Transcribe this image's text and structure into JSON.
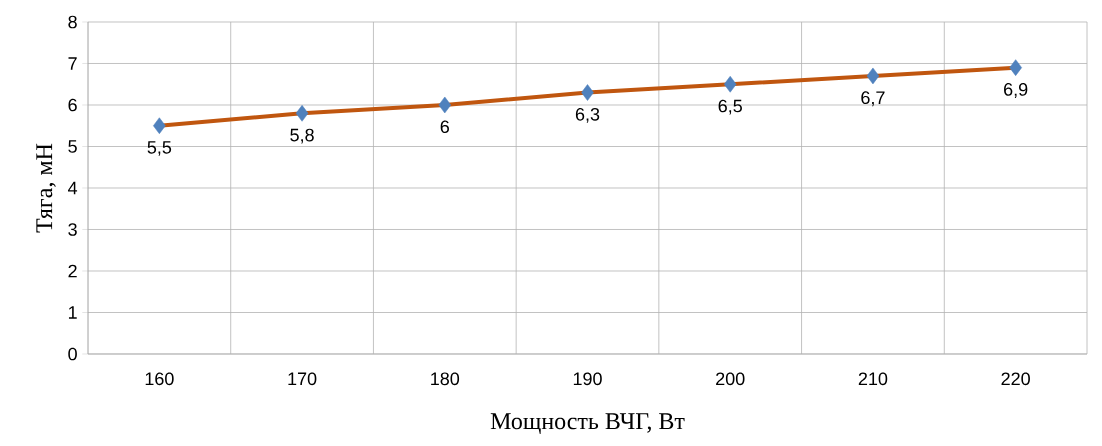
{
  "chart_data": {
    "type": "line",
    "xlabel": "Мощность ВЧГ, Вт",
    "ylabel": "Тяга, мН",
    "categories": [
      "160",
      "170",
      "180",
      "190",
      "200",
      "210",
      "220"
    ],
    "series": [
      {
        "color": "#c0560f",
        "colors": [
          "#4f81bd",
          "#4f81bd",
          "#4f81bd",
          "#4f81bd",
          "#4f81bd",
          "#4f81bd",
          "#4f81bd"
        ],
        "values": [
          5.5,
          5.8,
          6,
          6.3,
          6.5,
          6.7,
          6.9
        ],
        "value_labels": [
          "5,5",
          "5,8",
          "6",
          "6,3",
          "6,5",
          "6,7",
          "6,9"
        ]
      }
    ],
    "ylim": [
      0,
      8
    ],
    "yticks": [
      0,
      1,
      2,
      3,
      4,
      5,
      6,
      7,
      8
    ],
    "grid": true,
    "marker": "diamond",
    "line_style": "solid"
  }
}
